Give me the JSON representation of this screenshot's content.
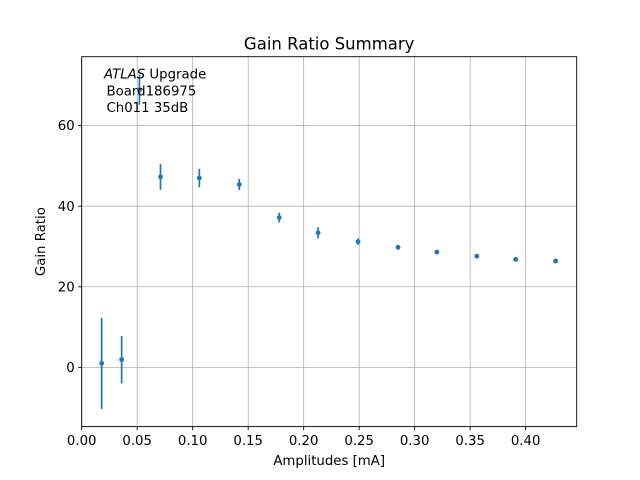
{
  "figure": {
    "background": "#ffffff"
  },
  "chart_data": {
    "type": "scatter",
    "title": "Gain Ratio Summary",
    "xlabel": "Amplitudes [mA]",
    "ylabel": "Gain Ratio",
    "xlim": [
      0.0,
      0.446
    ],
    "ylim": [
      -14.7,
      77.1
    ],
    "xticks": [
      0.0,
      0.05,
      0.1,
      0.15,
      0.2,
      0.25,
      0.3,
      0.35,
      0.4
    ],
    "xtick_labels": [
      "0.00",
      "0.05",
      "0.10",
      "0.15",
      "0.20",
      "0.25",
      "0.30",
      "0.35",
      "0.40"
    ],
    "yticks": [
      0,
      20,
      40,
      60
    ],
    "ytick_labels": [
      "0",
      "20",
      "40",
      "60"
    ],
    "grid": true,
    "legend": "none",
    "annotation": {
      "line1_italic": "ATLAS",
      "line1_regular": " Upgrade",
      "line2": "Board186975",
      "line3": "Ch011 35dB"
    },
    "series": [
      {
        "name": "gain-ratio-vs-amplitude",
        "marker": "point",
        "errorbars": "vertical-no-caps",
        "color": "#1f77b4",
        "points": [
          {
            "x": 0.018,
            "y": 1.0,
            "yerr": 11.3
          },
          {
            "x": 0.036,
            "y": 1.9,
            "yerr": 5.9
          },
          {
            "x": 0.052,
            "y": 68.9,
            "yerr": 3.7
          },
          {
            "x": 0.071,
            "y": 47.3,
            "yerr": 3.2
          },
          {
            "x": 0.106,
            "y": 47.0,
            "yerr": 2.3
          },
          {
            "x": 0.142,
            "y": 45.4,
            "yerr": 1.4
          },
          {
            "x": 0.178,
            "y": 37.2,
            "yerr": 1.2
          },
          {
            "x": 0.213,
            "y": 33.4,
            "yerr": 1.4
          },
          {
            "x": 0.249,
            "y": 31.2,
            "yerr": 0.8
          },
          {
            "x": 0.285,
            "y": 29.8,
            "yerr": 0.6
          },
          {
            "x": 0.32,
            "y": 28.6,
            "yerr": 0.5
          },
          {
            "x": 0.356,
            "y": 27.6,
            "yerr": 0.5
          },
          {
            "x": 0.391,
            "y": 26.8,
            "yerr": 0.4
          },
          {
            "x": 0.427,
            "y": 26.4,
            "yerr": 0.4
          }
        ]
      }
    ],
    "colors": {
      "marker": "#1f77b4",
      "grid": "#b0b0b0",
      "spine": "#000000",
      "tick": "#000000",
      "text": "#000000"
    }
  }
}
